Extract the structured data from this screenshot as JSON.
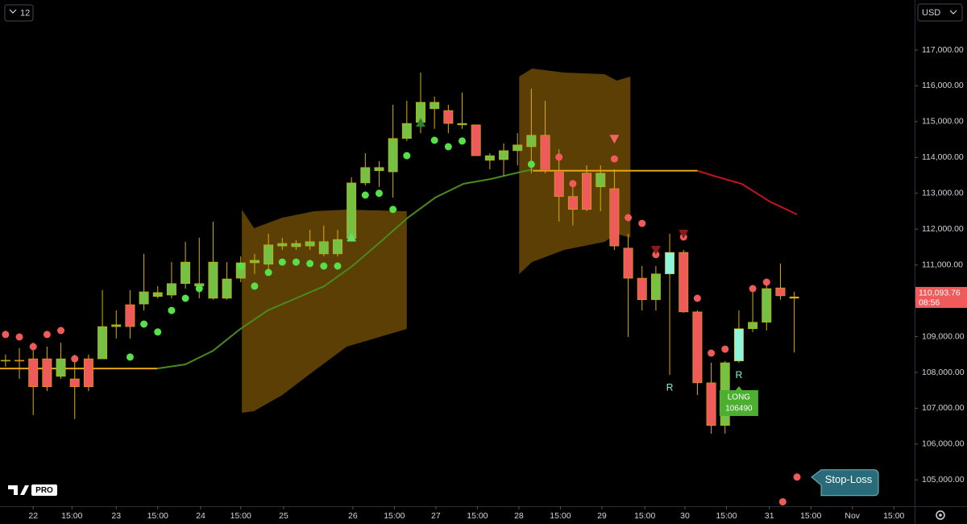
{
  "toolbar": {
    "interval": "12",
    "currency": "USD",
    "logo": "PRO"
  },
  "chart_data": {
    "type": "candlestick",
    "xlim": [
      -0.4,
      65.7
    ],
    "ylim": [
      104265,
      118395
    ],
    "xticks": [
      {
        "value": 2,
        "label": "22"
      },
      {
        "value": 4.8,
        "label": "15:00"
      },
      {
        "value": 8,
        "label": "23"
      },
      {
        "value": 11,
        "label": "15:00"
      },
      {
        "value": 14.1,
        "label": "24"
      },
      {
        "value": 17,
        "label": "15:00"
      },
      {
        "value": 20.1,
        "label": "25"
      },
      {
        "value": 25.1,
        "label": "26"
      },
      {
        "value": 28.1,
        "label": "15:00"
      },
      {
        "value": 31.1,
        "label": "27"
      },
      {
        "value": 34.1,
        "label": "15:00"
      },
      {
        "value": 37.1,
        "label": "28"
      },
      {
        "value": 40.1,
        "label": "15:00"
      },
      {
        "value": 43.1,
        "label": "29"
      },
      {
        "value": 46.2,
        "label": "15:00"
      },
      {
        "value": 49.1,
        "label": "30"
      },
      {
        "value": 52.1,
        "label": "15:00"
      },
      {
        "value": 55.2,
        "label": "31"
      },
      {
        "value": 58.2,
        "label": "15:00"
      },
      {
        "value": 61.2,
        "label": "Nov"
      },
      {
        "value": 64.2,
        "label": "15:00"
      }
    ],
    "yticks": [
      {
        "value": 105000,
        "label": "105,000.00"
      },
      {
        "value": 106000,
        "label": "106,000.00"
      },
      {
        "value": 107000,
        "label": "107,000.00"
      },
      {
        "value": 108000,
        "label": "108,000.00"
      },
      {
        "value": 109000,
        "label": "109,000.00"
      },
      {
        "value": 110000,
        "label": "110,000.00"
      },
      {
        "value": 111000,
        "label": "111,000.00"
      },
      {
        "value": 112000,
        "label": "112,000.00"
      },
      {
        "value": 113000,
        "label": "113,000.00"
      },
      {
        "value": 114000,
        "label": "114,000.00"
      },
      {
        "value": 115000,
        "label": "115,000.00"
      },
      {
        "value": 116000,
        "label": "116,000.00"
      },
      {
        "value": 117000,
        "label": "117,000.00"
      }
    ],
    "grid": false,
    "up_color": "#76c043",
    "down_color": "#ef5b5b",
    "reversal_color": "#8ff5d8",
    "wick_color": "#d9b000",
    "x": [
      0,
      1,
      2,
      3,
      4,
      5,
      6,
      7,
      8,
      9,
      10,
      11,
      12,
      13,
      14,
      15,
      16,
      17,
      18,
      19,
      20,
      21,
      22,
      23,
      24,
      25,
      26,
      27,
      28,
      29,
      30,
      31,
      32,
      33,
      34,
      35,
      36,
      37,
      38,
      39,
      40,
      41,
      42,
      43,
      44,
      45,
      46,
      47,
      48,
      49,
      50,
      51,
      52,
      53,
      54,
      55,
      56,
      57
    ],
    "open": [
      108320,
      108340,
      108380,
      108380,
      107890,
      107820,
      108380,
      108380,
      109280,
      109890,
      109910,
      110120,
      110160,
      110480,
      110410,
      110070,
      110070,
      110630,
      111060,
      111020,
      111530,
      111510,
      111530,
      111310,
      111310,
      111740,
      113290,
      113630,
      113600,
      114530,
      114980,
      115360,
      115310,
      114910,
      114910,
      113920,
      113940,
      114190,
      114300,
      114620,
      113630,
      112910,
      113560,
      113180,
      113130,
      111470,
      110630,
      110030,
      111350,
      111350,
      109690,
      107710,
      106520,
      108320,
      109220,
      109400,
      110360,
      110094
    ],
    "high": [
      108500,
      108680,
      108830,
      108720,
      108830,
      108500,
      108500,
      110300,
      109730,
      110300,
      111310,
      110410,
      111080,
      111650,
      111760,
      112210,
      111080,
      111240,
      111310,
      111870,
      111760,
      111690,
      111980,
      112100,
      111980,
      113450,
      114120,
      113900,
      115470,
      115580,
      116370,
      115700,
      115470,
      115810,
      114910,
      114120,
      114390,
      114680,
      115920,
      115580,
      114230,
      113330,
      113780,
      113780,
      113670,
      111870,
      110970,
      110970,
      111870,
      111420,
      109730,
      108270,
      108320,
      109730,
      110300,
      110480,
      111040,
      110250
    ],
    "low": [
      108160,
      107820,
      106810,
      107480,
      107820,
      106700,
      107480,
      108380,
      108950,
      108950,
      109730,
      110070,
      110070,
      110340,
      110070,
      110030,
      110030,
      110520,
      110750,
      110860,
      111420,
      111420,
      111420,
      111240,
      111240,
      111650,
      113220,
      113180,
      112880,
      114460,
      114680,
      114800,
      114680,
      114800,
      114050,
      113670,
      113490,
      113780,
      113560,
      113560,
      112210,
      112100,
      112500,
      112500,
      111420,
      108990,
      109730,
      109730,
      107930,
      109670,
      107370,
      106290,
      106290,
      108270,
      109130,
      109170,
      110030,
      108560
    ],
    "close": [
      108340,
      108320,
      107600,
      107600,
      108380,
      107600,
      107600,
      109280,
      109330,
      109280,
      110250,
      110230,
      110480,
      111080,
      110480,
      111080,
      110610,
      111060,
      111130,
      111560,
      111600,
      111600,
      111650,
      111650,
      111710,
      113290,
      113720,
      113720,
      114530,
      114950,
      115540,
      115540,
      114950,
      114950,
      114050,
      114050,
      114190,
      114350,
      114620,
      113630,
      112910,
      112550,
      112550,
      113560,
      111530,
      110630,
      110030,
      110750,
      110750,
      109690,
      107710,
      106520,
      108270,
      109220,
      109400,
      110340,
      110140,
      110094
    ],
    "markers": [
      {
        "x": 48,
        "label": "R"
      },
      {
        "x": 53,
        "label": "R"
      }
    ],
    "bands": [
      {
        "color": "#6b4a05",
        "x": [
          17.08,
          17.96,
          20,
          22.3,
          24.66,
          29
        ],
        "upper": [
          112545,
          112027,
          112320,
          112500,
          112545,
          112500
        ],
        "lower": [
          106875,
          106920,
          107370,
          108045,
          108720,
          109215
        ]
      },
      {
        "color": "#6b4a05",
        "x": [
          37.12,
          38.05,
          40.38,
          43.29,
          44.17,
          45.16
        ],
        "upper": [
          116257,
          116482,
          116370,
          116325,
          116145,
          116257
        ],
        "lower": [
          110745,
          111082,
          111420,
          111645,
          111870,
          111757
        ]
      }
    ],
    "lines": [
      {
        "color": "#e8a317",
        "x": [
          -0.4,
          10.97
        ],
        "values": [
          108110,
          108110
        ]
      },
      {
        "color": "#4a8a1f",
        "x": [
          10.97,
          13,
          15,
          16.97,
          18.95,
          20.99,
          23.03,
          25.06,
          27.1,
          29.08,
          31.06,
          33.1,
          35.08,
          37.06,
          38.11
        ],
        "values": [
          108110,
          108225,
          108607,
          109215,
          109732,
          110070,
          110407,
          110970,
          111645,
          112320,
          112882,
          113265,
          113400,
          113580,
          113670
        ]
      },
      {
        "color": "#e8a317",
        "x": [
          38.11,
          50
        ],
        "values": [
          113630,
          113630
        ]
      },
      {
        "color": "#c0161a",
        "x": [
          50,
          51.16,
          53.2,
          55.23,
          57.2
        ],
        "values": [
          113630,
          113490,
          113265,
          112770,
          112410
        ]
      }
    ],
    "dots": [
      {
        "color": "#57e04a",
        "x": [
          9,
          10,
          11,
          12,
          13,
          14,
          17,
          18,
          19,
          20,
          21,
          22,
          23,
          24,
          26,
          27,
          28,
          29,
          31,
          32,
          33,
          38
        ],
        "values": [
          108430,
          109350,
          109130,
          109730,
          110070,
          110340,
          110970,
          110410,
          110790,
          111080,
          111080,
          111040,
          110970,
          110970,
          112950,
          113000,
          112550,
          114050,
          114480,
          114300,
          114460,
          113810
        ]
      },
      {
        "color": "#f05a5a",
        "x": [
          0,
          1,
          2,
          3,
          4,
          5,
          40,
          41,
          44,
          45,
          46,
          47,
          49,
          50,
          51,
          52,
          54,
          55,
          56.17,
          57.2
        ],
        "values": [
          109060,
          108990,
          108720,
          109060,
          109170,
          108380,
          114010,
          113270,
          113960,
          112320,
          112160,
          111290,
          111780,
          110070,
          108540,
          108650,
          110340,
          110520,
          104390,
          105080
        ]
      }
    ],
    "signals": [
      {
        "x": 25,
        "value": 111770,
        "direction": "up",
        "color": "#5fe06a"
      },
      {
        "x": 30,
        "value": 114970,
        "direction": "up",
        "color": "#2e7d32"
      },
      {
        "x": 44,
        "value": 114520,
        "direction": "down",
        "color": "#f06464"
      },
      {
        "x": 47,
        "value": 111420,
        "direction": "down",
        "color": "#8b1a1a"
      },
      {
        "x": 49,
        "value": 111870,
        "direction": "down",
        "color": "#8b1a1a"
      }
    ],
    "long_label": {
      "x": 53,
      "value": 106490,
      "title": "LONG",
      "label": "106490"
    },
    "stop_label": {
      "x": 57.2,
      "value": 105080,
      "label": "Stop-Loss"
    },
    "last_price": {
      "value": 110093.76,
      "label": "110,093.76",
      "countdown": "08:56"
    }
  }
}
